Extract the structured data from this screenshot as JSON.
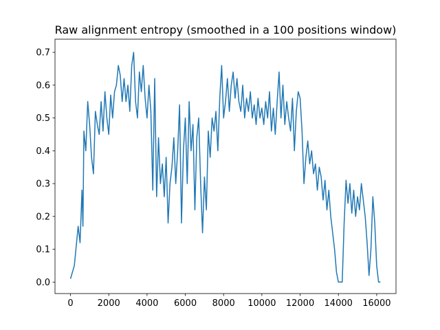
{
  "chart_data": {
    "type": "line",
    "title": "Raw alignment entropy (smoothed in a 100 positions window)",
    "x": [
      0,
      200,
      400,
      500,
      600,
      650,
      700,
      800,
      900,
      1000,
      1100,
      1200,
      1300,
      1400,
      1500,
      1600,
      1700,
      1800,
      1900,
      2000,
      2100,
      2200,
      2300,
      2400,
      2500,
      2600,
      2700,
      2800,
      2900,
      3000,
      3100,
      3200,
      3300,
      3400,
      3500,
      3600,
      3700,
      3800,
      3900,
      4000,
      4100,
      4200,
      4300,
      4400,
      4500,
      4600,
      4700,
      4800,
      4900,
      5000,
      5100,
      5200,
      5300,
      5400,
      5500,
      5600,
      5700,
      5800,
      5900,
      6000,
      6100,
      6200,
      6300,
      6400,
      6500,
      6600,
      6700,
      6800,
      6900,
      7000,
      7100,
      7200,
      7300,
      7400,
      7500,
      7600,
      7700,
      7800,
      7900,
      8000,
      8100,
      8200,
      8300,
      8400,
      8500,
      8600,
      8700,
      8800,
      8900,
      9000,
      9100,
      9200,
      9300,
      9400,
      9500,
      9600,
      9700,
      9800,
      9900,
      10000,
      10100,
      10200,
      10300,
      10400,
      10500,
      10600,
      10700,
      10800,
      10900,
      11000,
      11100,
      11200,
      11300,
      11400,
      11500,
      11600,
      11700,
      11800,
      11900,
      12000,
      12100,
      12200,
      12300,
      12400,
      12500,
      12600,
      12700,
      12800,
      12900,
      13000,
      13100,
      13200,
      13300,
      13400,
      13500,
      13600,
      13700,
      13800,
      13900,
      14000,
      14100,
      14200,
      14300,
      14400,
      14500,
      14600,
      14700,
      14800,
      14900,
      15000,
      15100,
      15200,
      15300,
      15400,
      15500,
      15600,
      15700,
      15800,
      15900,
      16000,
      16100,
      16200
    ],
    "values": [
      0.01,
      0.05,
      0.17,
      0.12,
      0.28,
      0.17,
      0.46,
      0.4,
      0.55,
      0.48,
      0.38,
      0.33,
      0.52,
      0.48,
      0.45,
      0.55,
      0.46,
      0.58,
      0.5,
      0.45,
      0.57,
      0.5,
      0.58,
      0.6,
      0.66,
      0.63,
      0.55,
      0.62,
      0.55,
      0.6,
      0.52,
      0.66,
      0.7,
      0.55,
      0.5,
      0.64,
      0.58,
      0.66,
      0.56,
      0.5,
      0.6,
      0.52,
      0.28,
      0.62,
      0.26,
      0.44,
      0.3,
      0.36,
      0.26,
      0.38,
      0.18,
      0.3,
      0.35,
      0.44,
      0.3,
      0.4,
      0.54,
      0.18,
      0.4,
      0.5,
      0.3,
      0.55,
      0.4,
      0.48,
      0.22,
      0.44,
      0.5,
      0.3,
      0.15,
      0.32,
      0.22,
      0.46,
      0.38,
      0.5,
      0.46,
      0.52,
      0.4,
      0.56,
      0.66,
      0.5,
      0.55,
      0.62,
      0.52,
      0.6,
      0.64,
      0.56,
      0.62,
      0.55,
      0.52,
      0.6,
      0.5,
      0.56,
      0.52,
      0.58,
      0.5,
      0.54,
      0.48,
      0.56,
      0.5,
      0.53,
      0.48,
      0.55,
      0.5,
      0.58,
      0.46,
      0.53,
      0.45,
      0.55,
      0.64,
      0.5,
      0.6,
      0.48,
      0.55,
      0.5,
      0.46,
      0.56,
      0.4,
      0.52,
      0.58,
      0.56,
      0.46,
      0.3,
      0.38,
      0.43,
      0.36,
      0.4,
      0.33,
      0.36,
      0.28,
      0.35,
      0.32,
      0.25,
      0.31,
      0.22,
      0.28,
      0.2,
      0.15,
      0.1,
      0.03,
      0.0,
      0.0,
      0.0,
      0.18,
      0.31,
      0.24,
      0.3,
      0.21,
      0.28,
      0.2,
      0.26,
      0.22,
      0.3,
      0.25,
      0.2,
      0.12,
      0.02,
      0.1,
      0.26,
      0.18,
      0.05,
      0.0,
      0.0
    ],
    "color": "#1f77b4",
    "xlim": [
      -810,
      17010
    ],
    "xticks": [
      0,
      2000,
      4000,
      6000,
      8000,
      10000,
      12000,
      14000,
      16000
    ],
    "ylim": [
      -0.035,
      0.74
    ],
    "yticks": [
      {
        "value": 0,
        "label": "0.0"
      },
      0.1,
      0.2,
      0.3,
      0.4,
      0.5,
      0.6,
      0.7
    ],
    "grid": false
  }
}
